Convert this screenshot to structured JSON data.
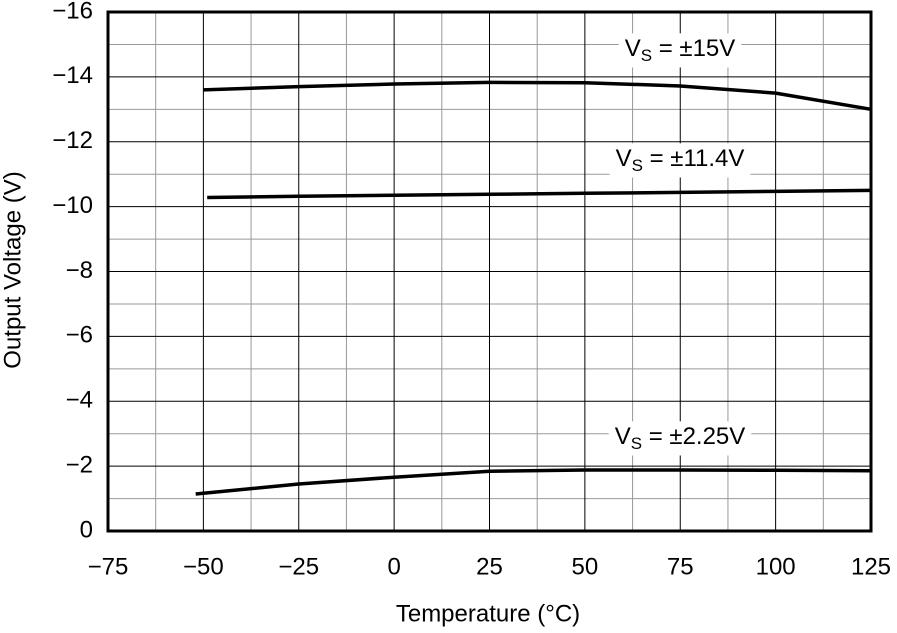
{
  "chart_data": {
    "type": "line",
    "x_label": "Temperature (°C)",
    "y_label": "Output Voltage (V)",
    "xlim": [
      -75,
      125
    ],
    "xticks": [
      {
        "value": -75,
        "label": "−75"
      },
      {
        "value": -50,
        "label": "−50"
      },
      {
        "value": -25,
        "label": "−25"
      },
      0,
      25,
      50,
      75,
      100,
      125
    ],
    "ylim": [
      0,
      -16
    ],
    "yticks": [
      {
        "value": -16,
        "label": "−16"
      },
      {
        "value": -14,
        "label": "−14"
      },
      {
        "value": -12,
        "label": "−12"
      },
      {
        "value": -10,
        "label": "−10"
      },
      {
        "value": -8,
        "label": "−8"
      },
      {
        "value": -6,
        "label": "−6"
      },
      {
        "value": -4,
        "label": "−4"
      },
      {
        "value": -2,
        "label": "−2"
      },
      0
    ],
    "grid": true,
    "series": [
      {
        "label": {
          "main": "V",
          "sub": "S",
          "rest": " = ±15V"
        },
        "color": "#000000",
        "x": [
          -50,
          -25,
          0,
          25,
          50,
          75,
          100,
          125
        ],
        "values": [
          -13.6,
          -13.7,
          -13.78,
          -13.83,
          -13.82,
          -13.72,
          -13.5,
          -13.0
        ]
      },
      {
        "label": {
          "main": "V",
          "sub": "S",
          "rest": " = ±11.4V"
        },
        "color": "#000000",
        "x": [
          -49,
          -25,
          0,
          25,
          50,
          75,
          100,
          125
        ],
        "values": [
          -10.28,
          -10.32,
          -10.35,
          -10.38,
          -10.41,
          -10.44,
          -10.47,
          -10.5
        ]
      },
      {
        "label": {
          "main": "V",
          "sub": "S",
          "rest": " = ±2.25V"
        },
        "color": "#000000",
        "x": [
          -52,
          -25,
          0,
          25,
          50,
          75,
          100,
          125
        ],
        "values": [
          -1.14,
          -1.45,
          -1.66,
          -1.84,
          -1.88,
          -1.88,
          -1.87,
          -1.86
        ]
      }
    ]
  }
}
